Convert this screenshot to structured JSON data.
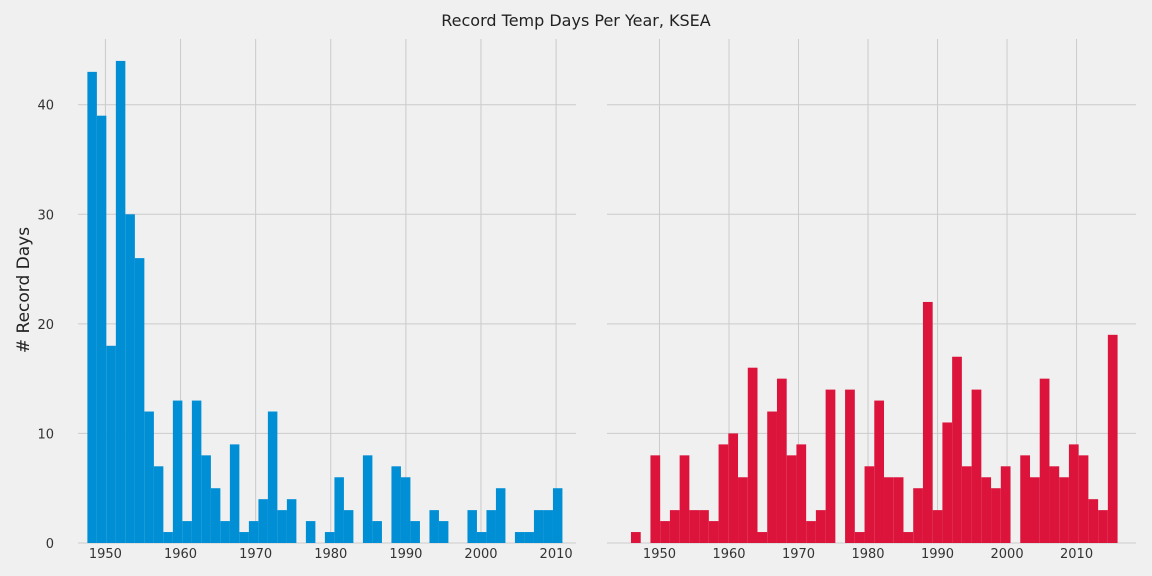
{
  "title": "Record Temp Days Per Year, KSEA",
  "chart_data": [
    {
      "type": "bar",
      "ylabel": "# Record Days",
      "color": "#008fd5",
      "xlim": [
        1946.35,
        2012.65
      ],
      "ylim": [
        0,
        46
      ],
      "xticks": [
        1950,
        1960,
        1970,
        1980,
        1990,
        2000,
        2010
      ],
      "yticks": [
        0,
        10,
        20,
        30,
        40
      ],
      "grid": true,
      "bin_width": 1.264,
      "bins_start": [
        1947.6,
        1948.86,
        1950.13,
        1951.39,
        1952.66,
        1953.92,
        1955.19,
        1956.45,
        1957.72,
        1958.98,
        1960.25,
        1961.51,
        1962.78,
        1964.04,
        1965.31,
        1966.57,
        1967.84,
        1969.1,
        1970.37,
        1971.63,
        1972.9,
        1974.16,
        1975.43,
        1976.69,
        1977.96,
        1979.22,
        1980.49,
        1981.75,
        1983.02,
        1984.28,
        1985.55,
        1986.81,
        1988.08,
        1989.34,
        1990.61,
        1991.87,
        1993.14,
        1994.4,
        1995.67,
        1996.93,
        1998.2,
        1999.46,
        2000.73,
        2001.99,
        2003.26,
        2004.52,
        2005.79,
        2007.05,
        2008.32,
        2009.58
      ],
      "values": [
        43,
        39,
        18,
        44,
        30,
        26,
        12,
        7,
        1,
        13,
        2,
        13,
        8,
        5,
        2,
        9,
        1,
        2,
        4,
        12,
        3,
        4,
        0,
        2,
        0,
        1,
        6,
        3,
        0,
        8,
        2,
        0,
        7,
        6,
        2,
        0,
        3,
        2,
        0,
        0,
        3,
        1,
        3,
        5,
        0,
        1,
        1,
        3,
        3,
        5
      ]
    },
    {
      "type": "bar",
      "ylabel": "",
      "color": "#dc143c",
      "xlim": [
        1942.45,
        2018.55
      ],
      "ylim": [
        0,
        46
      ],
      "xticks": [
        1950,
        1960,
        1970,
        1980,
        1990,
        2000,
        2010
      ],
      "yticks": [
        0,
        10,
        20,
        30,
        40
      ],
      "grid": true,
      "bin_width": 1.4,
      "bins_start": [
        1945.9,
        1947.3,
        1948.7,
        1950.1,
        1951.5,
        1952.9,
        1954.3,
        1955.7,
        1957.1,
        1958.5,
        1959.9,
        1961.3,
        1962.7,
        1964.1,
        1965.5,
        1966.9,
        1968.3,
        1969.7,
        1971.1,
        1972.5,
        1973.9,
        1975.3,
        1976.7,
        1978.1,
        1979.5,
        1980.9,
        1982.3,
        1983.7,
        1985.1,
        1986.5,
        1987.9,
        1989.3,
        1990.7,
        1992.1,
        1993.5,
        1994.9,
        1996.3,
        1997.7,
        1999.1,
        2000.5,
        2001.9,
        2003.3,
        2004.7,
        2006.1,
        2007.5,
        2008.9,
        2010.3,
        2011.7,
        2013.1,
        2014.5
      ],
      "values": [
        1,
        0,
        8,
        2,
        3,
        8,
        3,
        3,
        2,
        9,
        10,
        6,
        16,
        1,
        12,
        15,
        8,
        9,
        2,
        3,
        14,
        0,
        14,
        1,
        7,
        13,
        6,
        6,
        1,
        5,
        22,
        3,
        11,
        17,
        7,
        14,
        6,
        5,
        7,
        0,
        8,
        6,
        15,
        7,
        6,
        9,
        8,
        4,
        3,
        19
      ]
    }
  ]
}
